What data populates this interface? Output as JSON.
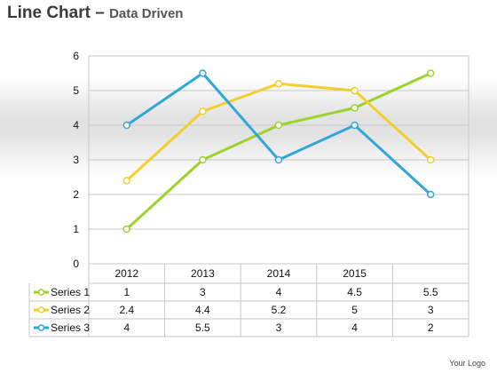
{
  "header": {
    "title_main": "Line Chart",
    "title_dash": "–",
    "title_sub": "Data Driven"
  },
  "footer": {
    "logo_text": "Your Logo"
  },
  "colors": {
    "Series 1": "#9dd22b",
    "Series 2": "#f2cf2c",
    "Series 3": "#2fa7d9",
    "grid": "#c7c7c7"
  },
  "chart_data": {
    "type": "line",
    "title": "",
    "xlabel": "",
    "ylabel": "",
    "categories": [
      "2012",
      "2013",
      "2014",
      "2015",
      ""
    ],
    "ylim": [
      0,
      6
    ],
    "yticks": [
      0,
      1,
      2,
      3,
      4,
      5,
      6
    ],
    "grid": true,
    "data_table": true,
    "series": [
      {
        "name": "Series 1",
        "values": [
          1,
          3,
          4,
          4.5,
          5.5
        ],
        "labels": [
          "1",
          "3",
          "4",
          "4.5",
          "5.5"
        ]
      },
      {
        "name": "Series 2",
        "values": [
          2.4,
          4.4,
          5.2,
          5,
          3
        ],
        "labels": [
          "2.4",
          "4.4",
          "5.2",
          "5",
          "3"
        ]
      },
      {
        "name": "Series 3",
        "values": [
          4,
          5.5,
          3,
          4,
          2
        ],
        "labels": [
          "4",
          "5.5",
          "3",
          "4",
          "2"
        ]
      }
    ]
  }
}
